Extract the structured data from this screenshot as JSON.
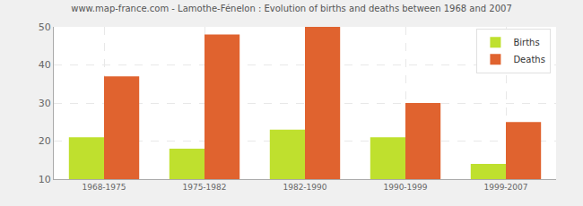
{
  "chart_data": {
    "type": "bar",
    "title": "www.map-france.com - Lamothe-Fénelon : Evolution of births and deaths between 1968 and 2007",
    "categories": [
      "1968-1975",
      "1975-1982",
      "1982-1990",
      "1990-1999",
      "1999-2007"
    ],
    "series": [
      {
        "name": "Births",
        "color": "#bfe02e",
        "values": [
          21,
          18,
          23,
          21,
          14
        ]
      },
      {
        "name": "Deaths",
        "color": "#e0632f",
        "values": [
          37,
          48,
          50,
          30,
          25
        ]
      }
    ],
    "ylim": [
      10,
      50
    ],
    "yticks": [
      10,
      20,
      30,
      40,
      50
    ],
    "grid": true,
    "legend": "top-right"
  }
}
